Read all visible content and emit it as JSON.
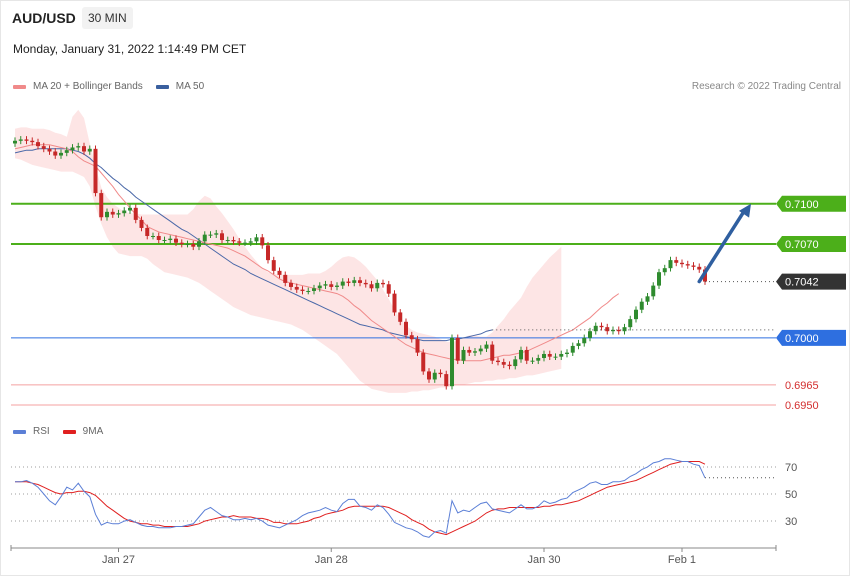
{
  "header": {
    "symbol": "AUD/USD",
    "timeframe": "30 MIN",
    "datetime": "Monday, January 31, 2022 1:14:49 PM CET"
  },
  "legend_price": [
    {
      "label": "MA 20 + Bollinger Bands",
      "color": "#f08a8a"
    },
    {
      "label": "MA 50",
      "color": "#3a5f9e"
    }
  ],
  "legend_rsi": [
    {
      "label": "RSI",
      "color": "#5b7fd6"
    },
    {
      "label": "9MA",
      "color": "#e02020"
    }
  ],
  "credit": "Research © 2022 Trading Central",
  "colors": {
    "resistance": "#4caf1a",
    "support": "#2e6fe0",
    "support_light": "#f4a0a0",
    "bull": "#2e8b2e",
    "bear": "#c62828",
    "bollinger_fill": "#fde0e0",
    "ma20": "#f08a8a",
    "ma50": "#4a68a8",
    "arrow": "#2f5fa0",
    "last_tag": "#333333",
    "rsi": "#5b7fd6",
    "rsi_ma": "#e02020"
  },
  "chart_data": {
    "type": "candlestick",
    "y_range": [
      0.69425,
      0.71625
    ],
    "last_price": {
      "value": 0.7042,
      "label": "0.7042"
    },
    "levels": [
      {
        "kind": "resistance",
        "value": 0.71,
        "label": "0.7100"
      },
      {
        "kind": "resistance",
        "value": 0.707,
        "label": "0.7070"
      },
      {
        "kind": "support",
        "value": 0.7,
        "label": "0.7000"
      },
      {
        "kind": "support-light",
        "value": 0.6965,
        "label": "0.6965"
      },
      {
        "kind": "support-light",
        "value": 0.695,
        "label": "0.6950"
      }
    ],
    "x_ticks": [
      {
        "label": "Jan 27",
        "index": 18
      },
      {
        "label": "Jan 28",
        "index": 55
      },
      {
        "label": "Jan 30",
        "index": 92
      },
      {
        "label": "Feb 1",
        "index": 116
      }
    ],
    "close": [
      0.7147,
      0.7148,
      0.7147,
      0.7146,
      0.7143,
      0.7141,
      0.7139,
      0.7136,
      0.7138,
      0.714,
      0.7142,
      0.7143,
      0.7139,
      0.7141,
      0.7108,
      0.709,
      0.7094,
      0.7092,
      0.7093,
      0.7095,
      0.7097,
      0.7088,
      0.7082,
      0.7076,
      0.7076,
      0.7073,
      0.7073,
      0.7074,
      0.7071,
      0.707,
      0.707,
      0.7068,
      0.7072,
      0.7077,
      0.7077,
      0.7078,
      0.7073,
      0.7073,
      0.7072,
      0.7071,
      0.7071,
      0.7072,
      0.7075,
      0.7069,
      0.7058,
      0.705,
      0.7047,
      0.7041,
      0.7038,
      0.7036,
      0.7035,
      0.7035,
      0.7037,
      0.7039,
      0.704,
      0.7038,
      0.7039,
      0.7042,
      0.7041,
      0.7043,
      0.7041,
      0.704,
      0.7037,
      0.7041,
      0.704,
      0.7033,
      0.7019,
      0.7012,
      0.7002,
      0.6999,
      0.6989,
      0.6975,
      0.6969,
      0.6974,
      0.6973,
      0.6964,
      0.7,
      0.6983,
      0.6991,
      0.6989,
      0.699,
      0.6992,
      0.6995,
      0.6983,
      0.6982,
      0.698,
      0.6979,
      0.6984,
      0.6991,
      0.6983,
      0.6983,
      0.6985,
      0.6988,
      0.6986,
      0.6986,
      0.6988,
      0.6989,
      0.6994,
      0.6996,
      0.7,
      0.7005,
      0.7009,
      0.7008,
      0.7005,
      0.7006,
      0.7005,
      0.7008,
      0.7014,
      0.7021,
      0.7027,
      0.7031,
      0.7039,
      0.7049,
      0.7052,
      0.7058,
      0.7056,
      0.7055,
      0.7054,
      0.7053,
      0.7051,
      0.7042
    ],
    "ma20": [
      0.7141,
      0.7142,
      0.7143,
      0.7144,
      0.7144,
      0.7144,
      0.7144,
      0.7143,
      0.7142,
      0.7141,
      0.7139,
      0.7135,
      0.7132,
      0.713,
      0.7128,
      0.7123,
      0.7118,
      0.7113,
      0.7107,
      0.7102,
      0.7097,
      0.7092,
      0.7088,
      0.7083,
      0.7081,
      0.7079,
      0.7078,
      0.7077,
      0.7076,
      0.7075,
      0.7074,
      0.7073,
      0.7072,
      0.7071,
      0.707,
      0.7069,
      0.7068,
      0.7067,
      0.7065,
      0.7063,
      0.7061,
      0.7058,
      0.7055,
      0.7052,
      0.705,
      0.7047,
      0.7044,
      0.7042,
      0.7041,
      0.704,
      0.7039,
      0.7038,
      0.7037,
      0.7036,
      0.7035,
      0.7034,
      0.7033,
      0.7031,
      0.7028,
      0.7024,
      0.7021,
      0.7017,
      0.7013,
      0.701,
      0.7007,
      0.7004,
      0.7001,
      0.6998,
      0.6995,
      0.6993,
      0.6991,
      0.6989,
      0.6988,
      0.6987,
      0.6986,
      0.6985,
      0.6984,
      0.6984,
      0.6983,
      0.6983,
      0.6983,
      0.6983,
      0.6984,
      0.6985,
      0.6986,
      0.6987,
      0.6987,
      0.6988,
      0.6989,
      0.699,
      0.6992,
      0.6994,
      0.6996,
      0.6998,
      0.7,
      0.7002,
      0.7004,
      0.7006,
      0.7009,
      0.7012,
      0.7015,
      0.7019,
      0.7023,
      0.7026,
      0.703,
      0.7033
    ],
    "ma20_start_index": 0,
    "ma50": [
      0.7138,
      0.7139,
      0.714,
      0.714,
      0.7141,
      0.7141,
      0.7141,
      0.7141,
      0.7141,
      0.7141,
      0.714,
      0.7139,
      0.7137,
      0.7134,
      0.713,
      0.7127,
      0.7123,
      0.7119,
      0.7116,
      0.7112,
      0.7109,
      0.7105,
      0.7102,
      0.7099,
      0.7096,
      0.7093,
      0.709,
      0.7087,
      0.7084,
      0.7081,
      0.7079,
      0.7076,
      0.7073,
      0.707,
      0.7067,
      0.7064,
      0.7061,
      0.7058,
      0.7055,
      0.7053,
      0.7051,
      0.7048,
      0.7046,
      0.7044,
      0.7042,
      0.704,
      0.7038,
      0.7036,
      0.7034,
      0.7032,
      0.703,
      0.7028,
      0.7026,
      0.7024,
      0.7022,
      0.702,
      0.7018,
      0.7016,
      0.7014,
      0.7012,
      0.701,
      0.7009,
      0.7008,
      0.7007,
      0.7006,
      0.7004,
      0.7003,
      0.7002,
      0.7001,
      0.7,
      0.6999,
      0.6998,
      0.6998,
      0.6998,
      0.6998,
      0.6998,
      0.6999,
      0.6999,
      0.7,
      0.7001,
      0.7002,
      0.7003,
      0.7005,
      0.7006
    ],
    "ma50_start_index": 0,
    "bollinger_upper": [
      0.7156,
      0.7157,
      0.7157,
      0.7156,
      0.7156,
      0.7156,
      0.7155,
      0.7153,
      0.7152,
      0.715,
      0.7165,
      0.717,
      0.7164,
      0.7145,
      0.7128,
      0.7112,
      0.7105,
      0.71,
      0.7097,
      0.7094,
      0.7093,
      0.7093,
      0.7092,
      0.7092,
      0.7092,
      0.7092,
      0.7092,
      0.7092,
      0.7092,
      0.7092,
      0.7092,
      0.7096,
      0.7102,
      0.7106,
      0.7104,
      0.7098,
      0.7093,
      0.7087,
      0.7081,
      0.7074,
      0.7068,
      0.7062,
      0.7057,
      0.7052,
      0.7049,
      0.7048,
      0.7047,
      0.7047,
      0.7047,
      0.7047,
      0.7047,
      0.7048,
      0.7048,
      0.7048,
      0.705,
      0.7053,
      0.7057,
      0.706,
      0.7061,
      0.706,
      0.7057,
      0.7053,
      0.7048,
      0.7043,
      0.7036,
      0.7029,
      0.7021,
      0.7014,
      0.7009,
      0.7006,
      0.7004,
      0.7003,
      0.7002,
      0.7001,
      0.6999,
      0.6997,
      0.6997,
      0.6998,
      0.7,
      0.7002,
      0.7002,
      0.7001,
      0.7001,
      0.7004,
      0.7009,
      0.7014,
      0.702,
      0.7025,
      0.703,
      0.7038,
      0.7045,
      0.705,
      0.7055,
      0.706,
      0.7064,
      0.7068
    ],
    "bollinger_lower": [
      0.7134,
      0.7133,
      0.7131,
      0.7129,
      0.7128,
      0.7127,
      0.7126,
      0.7125,
      0.7124,
      0.7124,
      0.7124,
      0.7122,
      0.712,
      0.7113,
      0.7098,
      0.7085,
      0.7075,
      0.7068,
      0.7063,
      0.7062,
      0.7061,
      0.7061,
      0.7061,
      0.7059,
      0.7055,
      0.7052,
      0.7049,
      0.7048,
      0.7047,
      0.7046,
      0.7045,
      0.7043,
      0.7041,
      0.7038,
      0.7035,
      0.7032,
      0.7029,
      0.7026,
      0.7023,
      0.7021,
      0.7019,
      0.7017,
      0.7016,
      0.7015,
      0.7014,
      0.7013,
      0.7012,
      0.7011,
      0.701,
      0.7008,
      0.7006,
      0.7003,
      0.7,
      0.6997,
      0.6994,
      0.6991,
      0.6988,
      0.6983,
      0.6978,
      0.6973,
      0.6968,
      0.6965,
      0.6962,
      0.6961,
      0.696,
      0.6959,
      0.6959,
      0.6959,
      0.6959,
      0.696,
      0.696,
      0.6961,
      0.6961,
      0.6962,
      0.6963,
      0.6963,
      0.6964,
      0.6965,
      0.6965,
      0.6966,
      0.6967,
      0.6967,
      0.6968,
      0.6968,
      0.6969,
      0.6969,
      0.697,
      0.697,
      0.6971,
      0.6972,
      0.6972,
      0.6973,
      0.6974,
      0.6975,
      0.6976,
      0.6977
    ],
    "bollinger_start_index": 0,
    "target_arrow": {
      "from_index": 119,
      "from_value": 0.7042,
      "to_index": 128,
      "to_value": 0.71
    },
    "rsi": {
      "y_range": [
        16,
        84
      ],
      "levels": [
        {
          "value": 70,
          "label": "70"
        },
        {
          "value": 50,
          "label": "50"
        },
        {
          "value": 30,
          "label": "30"
        }
      ],
      "rsi": [
        59,
        59,
        60,
        58,
        55,
        50,
        45,
        42,
        48,
        55,
        53,
        58,
        52,
        48,
        35,
        27,
        29,
        28,
        28,
        30,
        31,
        29,
        27,
        26,
        26,
        25,
        25,
        25,
        26,
        26,
        27,
        28,
        33,
        38,
        40,
        37,
        34,
        33,
        31,
        31,
        32,
        31,
        32,
        30,
        27,
        26,
        25,
        27,
        29,
        31,
        34,
        36,
        37,
        38,
        40,
        38,
        37,
        43,
        46,
        46,
        41,
        40,
        38,
        42,
        40,
        35,
        29,
        27,
        25,
        24,
        22,
        19,
        18,
        22,
        23,
        21,
        45,
        36,
        38,
        37,
        40,
        43,
        44,
        39,
        38,
        37,
        36,
        39,
        42,
        39,
        39,
        41,
        45,
        43,
        44,
        46,
        47,
        51,
        53,
        55,
        58,
        59,
        57,
        57,
        59,
        59,
        60,
        63,
        65,
        68,
        70,
        73,
        74,
        76,
        76,
        75,
        74,
        74,
        72,
        71,
        62
      ],
      "rsi_start_index": 0,
      "ma9": [
        59,
        59,
        59,
        58,
        57,
        55,
        53,
        51,
        50,
        51,
        51,
        52,
        52,
        51,
        49,
        45,
        41,
        38,
        35,
        32,
        30,
        29,
        28,
        28,
        27,
        27,
        26,
        26,
        26,
        26,
        26,
        27,
        28,
        30,
        31,
        32,
        33,
        33,
        34,
        33,
        33,
        33,
        32,
        32,
        31,
        29,
        29,
        28,
        28,
        28,
        29,
        30,
        32,
        33,
        35,
        36,
        37,
        38,
        40,
        41,
        41,
        41,
        41,
        41,
        41,
        40,
        38,
        36,
        34,
        31,
        29,
        27,
        24,
        22,
        21,
        20,
        22,
        24,
        26,
        28,
        30,
        33,
        36,
        38,
        39,
        39,
        40,
        40,
        40,
        40,
        40,
        40,
        41,
        41,
        42,
        42,
        43,
        44,
        45,
        47,
        49,
        51,
        53,
        55,
        56,
        57,
        58,
        59,
        60,
        62,
        64,
        66,
        68,
        70,
        72,
        73,
        74,
        74,
        74,
        74,
        72
      ],
      "ma9_start_index": 0
    }
  }
}
